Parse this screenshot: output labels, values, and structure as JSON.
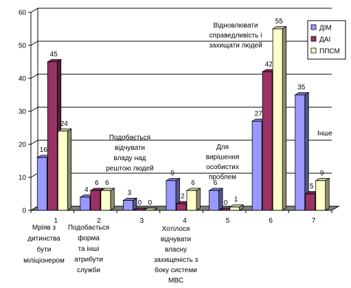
{
  "chart_data": {
    "type": "bar",
    "categories": [
      "1",
      "2",
      "3",
      "4",
      "5",
      "6",
      "7"
    ],
    "series": [
      {
        "name": "ДІМ",
        "color": "#9999ff",
        "values": [
          16,
          4,
          3,
          9,
          6,
          27,
          35
        ]
      },
      {
        "name": "ДАІ",
        "color": "#993366",
        "values": [
          45,
          6,
          0,
          2,
          0,
          42,
          5
        ]
      },
      {
        "name": "ППСМ",
        "color": "#ffffcc",
        "values": [
          24,
          6,
          0,
          6,
          1,
          55,
          9
        ]
      }
    ],
    "data_labels": [
      [
        "16",
        "45",
        "24"
      ],
      [
        "4",
        "6",
        "6"
      ],
      [
        "3",
        "0",
        "0"
      ],
      [
        "9",
        "2",
        "6"
      ],
      [
        "6",
        "0",
        "1"
      ],
      [
        "27",
        "42",
        "55"
      ],
      [
        "35",
        "5",
        "9"
      ]
    ],
    "ylim": [
      0,
      60
    ],
    "yticks": [
      "0",
      "10",
      "20",
      "30",
      "40",
      "50",
      "60"
    ],
    "grid": true,
    "legend_position": "top-right",
    "category_annotations": [
      [
        "Мрiяв з",
        "дитинства",
        "бути",
        "мiлiцiонером"
      ],
      [
        "Подобається",
        "форма",
        "та iншi",
        "атрибути",
        "служби"
      ],
      [
        "Подобається",
        "вiдчувати",
        "владу над",
        "рештою людей"
      ],
      [
        "Хотiлося",
        "вiдчувати",
        "власну",
        "захищенiсть з",
        "боку системи",
        "МВС"
      ],
      [
        "Для",
        "вирiшення",
        "особистих",
        "проблем"
      ],
      [
        "Вiдновлювати",
        "справедливiсть i",
        "захищати людей"
      ],
      [
        "Iнше"
      ]
    ]
  }
}
